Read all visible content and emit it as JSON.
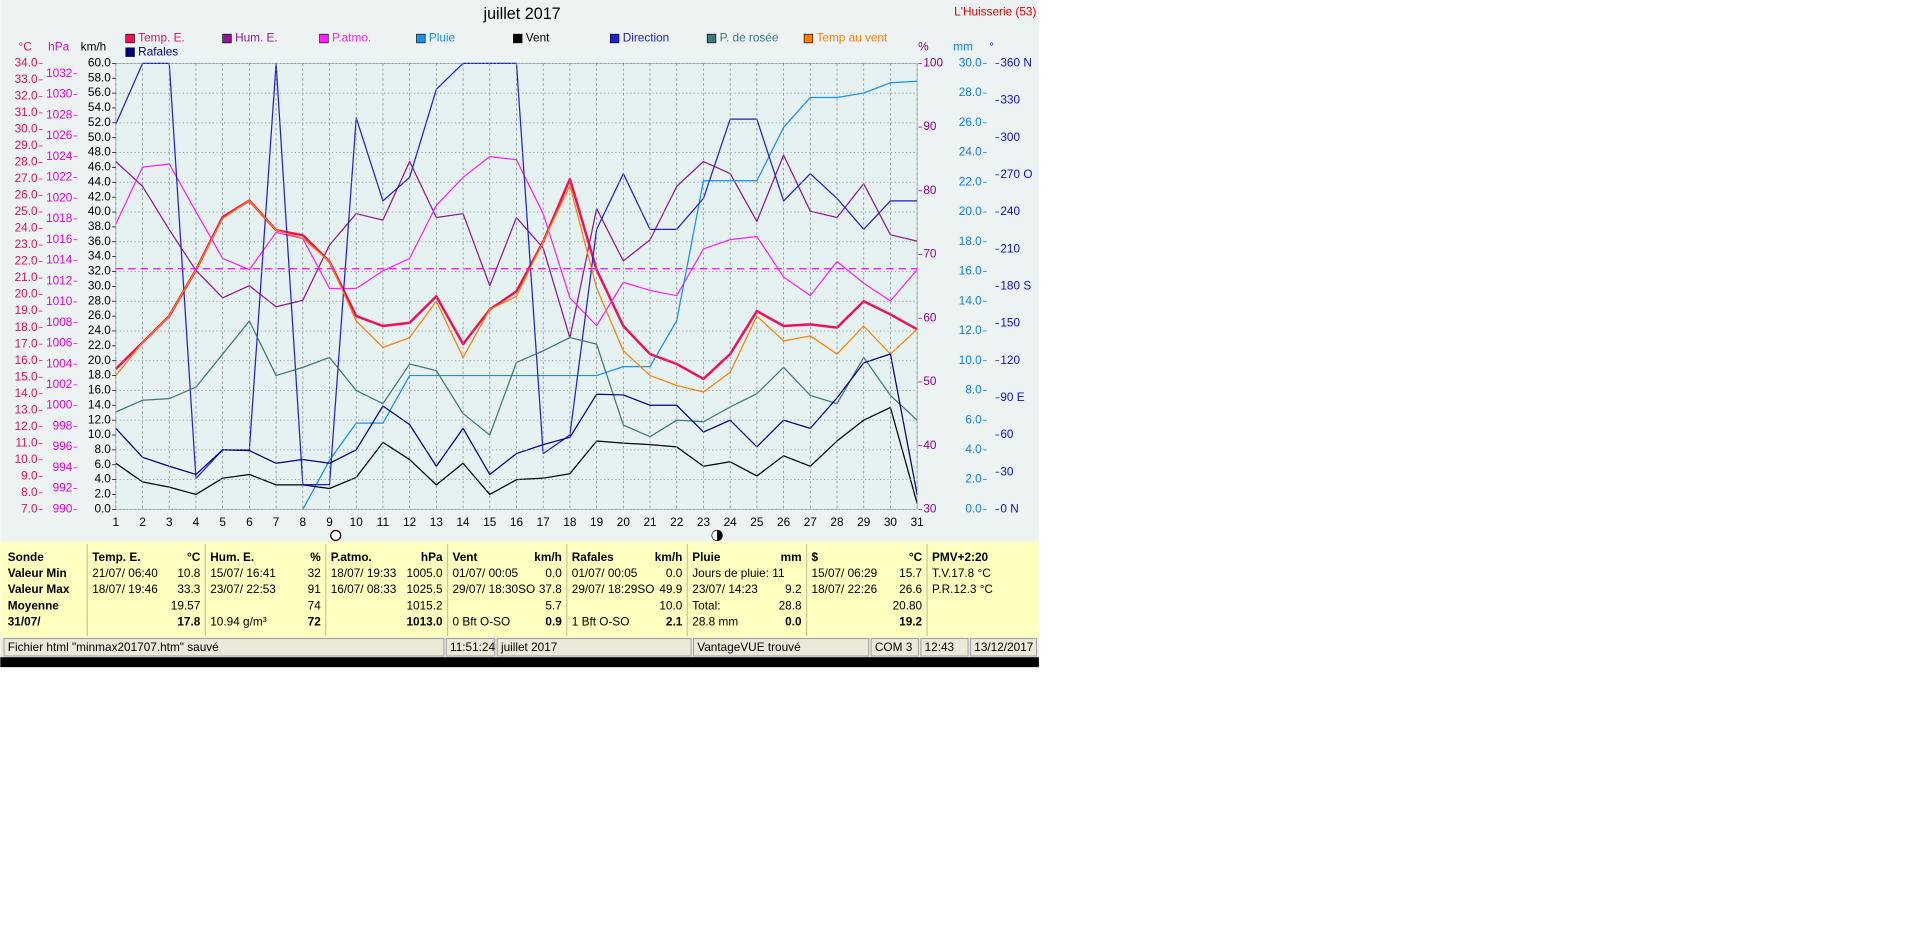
{
  "chart_data": {
    "type": "line",
    "title": "juillet 2017",
    "station": "L'Huisserie (53)",
    "x": [
      1,
      2,
      3,
      4,
      5,
      6,
      7,
      8,
      9,
      10,
      11,
      12,
      13,
      14,
      15,
      16,
      17,
      18,
      19,
      20,
      21,
      22,
      23,
      24,
      25,
      26,
      27,
      28,
      29,
      30,
      31
    ],
    "xlim": [
      1,
      31
    ],
    "grid": true,
    "ylabel": "km/h",
    "ylim": [
      0,
      60
    ],
    "ycolor": "#000000",
    "yticks": [
      {
        "value": 0,
        "label": "0.0"
      },
      {
        "value": 2,
        "label": "2.0"
      },
      {
        "value": 4,
        "label": "4.0"
      },
      {
        "value": 6,
        "label": "6.0"
      },
      {
        "value": 8,
        "label": "8.0"
      },
      {
        "value": 10,
        "label": "10.0"
      },
      {
        "value": 12,
        "label": "12.0"
      },
      {
        "value": 14,
        "label": "14.0"
      },
      {
        "value": 16,
        "label": "16.0"
      },
      {
        "value": 18,
        "label": "18.0"
      },
      {
        "value": 20,
        "label": "20.0"
      },
      {
        "value": 22,
        "label": "22.0"
      },
      {
        "value": 24,
        "label": "24.0"
      },
      {
        "value": 26,
        "label": "26.0"
      },
      {
        "value": 28,
        "label": "28.0"
      },
      {
        "value": 30,
        "label": "30.0"
      },
      {
        "value": 32,
        "label": "32.0"
      },
      {
        "value": 34,
        "label": "34.0"
      },
      {
        "value": 36,
        "label": "36.0"
      },
      {
        "value": 38,
        "label": "38.0"
      },
      {
        "value": 40,
        "label": "40.0"
      },
      {
        "value": 42,
        "label": "42.0"
      },
      {
        "value": 44,
        "label": "44.0"
      },
      {
        "value": 46,
        "label": "46.0"
      },
      {
        "value": 48,
        "label": "48.0"
      },
      {
        "value": 50,
        "label": "50.0"
      },
      {
        "value": 52,
        "label": "52.0"
      },
      {
        "value": 54,
        "label": "54.0"
      },
      {
        "value": 56,
        "label": "56.0"
      },
      {
        "value": 58,
        "label": "58.0"
      },
      {
        "value": 60,
        "label": "60.0"
      }
    ],
    "y2label": "°C",
    "y2lim": [
      7,
      34
    ],
    "y2color": "#e0105a",
    "y2ticks": [
      {
        "value": 7,
        "label": "7.0"
      },
      {
        "value": 8,
        "label": "8.0"
      },
      {
        "value": 9,
        "label": "9.0"
      },
      {
        "value": 10,
        "label": "10.0"
      },
      {
        "value": 11,
        "label": "11.0"
      },
      {
        "value": 12,
        "label": "12.0"
      },
      {
        "value": 13,
        "label": "13.0"
      },
      {
        "value": 14,
        "label": "14.0"
      },
      {
        "value": 15,
        "label": "15.0"
      },
      {
        "value": 16,
        "label": "16.0"
      },
      {
        "value": 17,
        "label": "17.0"
      },
      {
        "value": 18,
        "label": "18.0"
      },
      {
        "value": 19,
        "label": "19.0"
      },
      {
        "value": 20,
        "label": "20.0"
      },
      {
        "value": 21,
        "label": "21.0"
      },
      {
        "value": 22,
        "label": "22.0"
      },
      {
        "value": 23,
        "label": "23.0"
      },
      {
        "value": 24,
        "label": "24.0"
      },
      {
        "value": 25,
        "label": "25.0"
      },
      {
        "value": 26,
        "label": "26.0"
      },
      {
        "value": 27,
        "label": "27.0"
      },
      {
        "value": 28,
        "label": "28.0"
      },
      {
        "value": 29,
        "label": "29.0"
      },
      {
        "value": 30,
        "label": "30.0"
      },
      {
        "value": 31,
        "label": "31.0"
      },
      {
        "value": 32,
        "label": "32.0"
      },
      {
        "value": 33,
        "label": "33.0"
      },
      {
        "value": 34,
        "label": "34.0"
      }
    ],
    "y3label": "hPa",
    "y3lim": [
      990,
      1033
    ],
    "y3color": "#e000e0",
    "y3ticks": [
      990,
      992,
      994,
      996,
      998,
      1000,
      1002,
      1004,
      1006,
      1008,
      1010,
      1012,
      1014,
      1016,
      1018,
      1020,
      1022,
      1024,
      1026,
      1028,
      1030,
      1032
    ],
    "y4label": "%",
    "y4lim": [
      30,
      100
    ],
    "y4color": "#900090",
    "y4ticks": [
      30,
      40,
      50,
      60,
      70,
      80,
      90,
      100
    ],
    "y5label": "mm",
    "y5lim": [
      0,
      30
    ],
    "y5color": "#1080e0",
    "y5ticks": [
      {
        "value": 0,
        "label": "0.0"
      },
      {
        "value": 2,
        "label": "2.0"
      },
      {
        "value": 4,
        "label": "4.0"
      },
      {
        "value": 6,
        "label": "6.0"
      },
      {
        "value": 8,
        "label": "8.0"
      },
      {
        "value": 10,
        "label": "10.0"
      },
      {
        "value": 12,
        "label": "12.0"
      },
      {
        "value": 14,
        "label": "14.0"
      },
      {
        "value": 16,
        "label": "16.0"
      },
      {
        "value": 18,
        "label": "18.0"
      },
      {
        "value": 20,
        "label": "20.0"
      },
      {
        "value": 22,
        "label": "22.0"
      },
      {
        "value": 24,
        "label": "24.0"
      },
      {
        "value": 26,
        "label": "26.0"
      },
      {
        "value": 28,
        "label": "28.0"
      },
      {
        "value": 30,
        "label": "30.0"
      }
    ],
    "y6label": "°",
    "y6lim": [
      0,
      360
    ],
    "y6color": "#1010c0",
    "y6ticks": [
      {
        "value": 0,
        "label": "0   N"
      },
      30,
      60,
      {
        "value": 90,
        "label": "90  E"
      },
      120,
      150,
      {
        "value": 180,
        "label": "180 S"
      },
      210,
      240,
      {
        "value": 270,
        "label": "270 O"
      },
      300,
      330,
      {
        "value": 360,
        "label": "360 N"
      }
    ],
    "reference_lines": [
      {
        "axis": "y3",
        "value": 1013.2,
        "color": "#ff00ff"
      }
    ],
    "series": [
      {
        "name": "Temp. E.",
        "color": "#f0105a",
        "axis": "y2",
        "width": 2,
        "values": [
          15.5,
          17.1,
          18.7,
          21.5,
          24.7,
          25.7,
          23.9,
          23.6,
          22.0,
          18.7,
          18.1,
          18.3,
          19.9,
          17.0,
          19.1,
          20.2,
          23.2,
          27.0,
          21.5,
          18.1,
          16.4,
          15.8,
          14.9,
          16.4,
          19.0,
          18.1,
          18.2,
          18.0,
          19.6,
          18.8,
          17.9
        ]
      },
      {
        "name": "Hum. E.",
        "color": "#901890",
        "axis": "y4",
        "width": 1,
        "values": [
          84.6,
          80.7,
          73.9,
          67.5,
          63.2,
          65.1,
          61.8,
          62.8,
          71.5,
          76.4,
          75.4,
          84.6,
          75.8,
          76.4,
          65.1,
          75.8,
          71.0,
          56.9,
          77.2,
          69.0,
          72.3,
          80.7,
          84.6,
          82.7,
          75.2,
          85.6,
          76.8,
          75.8,
          81.1,
          73.1,
          72.1
        ]
      },
      {
        "name": "P.atmo.",
        "color": "#ff20ff",
        "axis": "y3",
        "width": 1,
        "values": [
          1017.5,
          1023.0,
          1023.3,
          1018.7,
          1014.2,
          1013.1,
          1016.7,
          1016.1,
          1011.3,
          1011.3,
          1013.0,
          1014.2,
          1019.3,
          1022.0,
          1024.0,
          1023.7,
          1018.5,
          1010.4,
          1007.7,
          1011.9,
          1011.1,
          1010.6,
          1015.1,
          1016.0,
          1016.3,
          1012.4,
          1010.6,
          1013.9,
          1011.8,
          1010.1,
          1013.1
        ]
      },
      {
        "name": "Pluie",
        "color": "#1890f0",
        "axis": "y5",
        "width": 1,
        "values": [
          null,
          null,
          null,
          null,
          null,
          null,
          null,
          0.0,
          3.3,
          5.8,
          5.8,
          9.0,
          9.0,
          9.0,
          9.0,
          9.0,
          9.0,
          9.0,
          9.0,
          9.6,
          9.6,
          12.7,
          22.1,
          22.1,
          22.1,
          25.7,
          27.7,
          27.7,
          28.0,
          28.7,
          28.8
        ]
      },
      {
        "name": "Vent",
        "color": "#000000",
        "width": 1,
        "values": [
          6.2,
          3.7,
          3.0,
          2.0,
          4.2,
          4.7,
          3.3,
          3.3,
          2.8,
          4.3,
          9.0,
          6.7,
          3.3,
          6.2,
          2.0,
          4.0,
          4.2,
          4.8,
          9.2,
          8.9,
          8.7,
          8.4,
          5.8,
          6.4,
          4.5,
          7.2,
          5.8,
          9.2,
          12.0,
          13.7,
          0.8
        ]
      },
      {
        "name": "Direction",
        "color": "#2020d0",
        "axis": "y6",
        "width": 1,
        "values": [
          311,
          360,
          360,
          25,
          48,
          48,
          360,
          20,
          20,
          316,
          249,
          268,
          339,
          360,
          360,
          360,
          45,
          60,
          226,
          271,
          226,
          226,
          251,
          315,
          315,
          249,
          271,
          251,
          226,
          249,
          249
        ]
      },
      {
        "name": "P. de rosée",
        "color": "#407878",
        "axis": "y2",
        "width": 1,
        "values": [
          12.9,
          13.6,
          13.7,
          14.4,
          16.4,
          18.4,
          15.1,
          15.6,
          16.2,
          14.2,
          13.4,
          15.8,
          15.4,
          12.8,
          11.5,
          15.9,
          16.6,
          17.4,
          17.0,
          12.1,
          11.4,
          12.4,
          12.3,
          13.2,
          14.0,
          15.6,
          13.9,
          13.4,
          16.2,
          13.9,
          12.4
        ]
      },
      {
        "name": "Temp au vent",
        "color": "#ff8000",
        "axis": "y2",
        "width": 1,
        "values": [
          15.1,
          17.1,
          18.7,
          21.5,
          24.6,
          25.7,
          23.9,
          23.4,
          22.0,
          18.4,
          16.8,
          17.4,
          19.6,
          16.2,
          19.1,
          19.9,
          23.2,
          26.6,
          20.4,
          16.6,
          15.1,
          14.5,
          14.1,
          15.3,
          18.7,
          17.2,
          17.5,
          16.4,
          18.1,
          16.4,
          17.9
        ]
      },
      {
        "name": "Rafales",
        "color": "#000080",
        "width": 1,
        "values": [
          10.9,
          7.0,
          5.8,
          4.7,
          8.0,
          7.9,
          6.2,
          6.7,
          6.2,
          8.0,
          13.9,
          11.4,
          5.8,
          10.9,
          4.7,
          7.5,
          8.7,
          9.7,
          15.5,
          15.4,
          14.0,
          14.0,
          10.4,
          12.0,
          8.4,
          12.0,
          10.9,
          15.0,
          19.7,
          20.9,
          2.0
        ]
      }
    ]
  },
  "table": {
    "columns": [
      {
        "header": "Sonde",
        "cells": [
          {
            "left": "Valeur Min"
          },
          {
            "left": "Valeur Max"
          },
          {
            "left": "Moyenne"
          },
          {
            "left": "31/07/"
          }
        ]
      },
      {
        "header": "Temp. E.",
        "unit": "°C",
        "cells": [
          {
            "left": "21/07/  06:40",
            "right": "10.8"
          },
          {
            "left": "18/07/  19:46",
            "right": "33.3"
          },
          {
            "right": "19.57"
          },
          {
            "right": "17.8"
          }
        ]
      },
      {
        "header": "Hum. E.",
        "unit": "%",
        "cells": [
          {
            "left": "15/07/  16:41",
            "right": "32"
          },
          {
            "left": "23/07/  22:53",
            "right": "91"
          },
          {
            "right": "74"
          },
          {
            "left": " 10.94 g/m³",
            "right": "72"
          }
        ]
      },
      {
        "header": "P.atmo.",
        "unit": "hPa",
        "cells": [
          {
            "left": "18/07/  19:33",
            "right": "1005.0"
          },
          {
            "left": "16/07/  08:33",
            "right": "1025.5"
          },
          {
            "right": "1015.2"
          },
          {
            "right": "1013.0"
          }
        ]
      },
      {
        "header": "Vent",
        "unit": "km/h",
        "cells": [
          {
            "left": "01/07/  00:05",
            "right": "0.0"
          },
          {
            "left": "29/07/  18:30SO",
            "right": "37.8"
          },
          {
            "right": "5.7"
          },
          {
            "left": " 0 Bft O-SO",
            "right": "0.9"
          }
        ]
      },
      {
        "header": "Rafales",
        "unit": "km/h",
        "cells": [
          {
            "left": "01/07/  00:05",
            "right": "0.0"
          },
          {
            "left": "29/07/  18:29SO",
            "right": "49.9"
          },
          {
            "right": "10.0"
          },
          {
            "left": " 1 Bft O-SO",
            "right": "2.1"
          }
        ]
      },
      {
        "header": "Pluie",
        "unit": "mm",
        "cells": [
          {
            "left": "Jours de pluie: 11"
          },
          {
            "left": "23/07/  14:23",
            "right": "9.2"
          },
          {
            "left": "Total:",
            "right": "28.8"
          },
          {
            "left": " 28.8 mm",
            "right": "0.0"
          }
        ]
      },
      {
        "header": "$",
        "unit": "°C",
        "cells": [
          {
            "left": "15/07/  06:29",
            "right": "15.7"
          },
          {
            "left": "18/07/  22:26",
            "right": "26.6"
          },
          {
            "right": "20.80"
          },
          {
            "right": "19.2"
          }
        ]
      },
      {
        "header": "PMV+2:20",
        "cells": [
          {
            "left": "T.V.17.8 °C"
          },
          {
            "left": "P.R.12.3 °C"
          }
        ]
      }
    ]
  },
  "status_bar": [
    "Fichier html  \"minmax201707.htm\"  sauvé",
    "11:51:24",
    "juillet 2017",
    "VantageVUE trouvé",
    "COM 3",
    "12:43",
    "13/12/2017"
  ]
}
